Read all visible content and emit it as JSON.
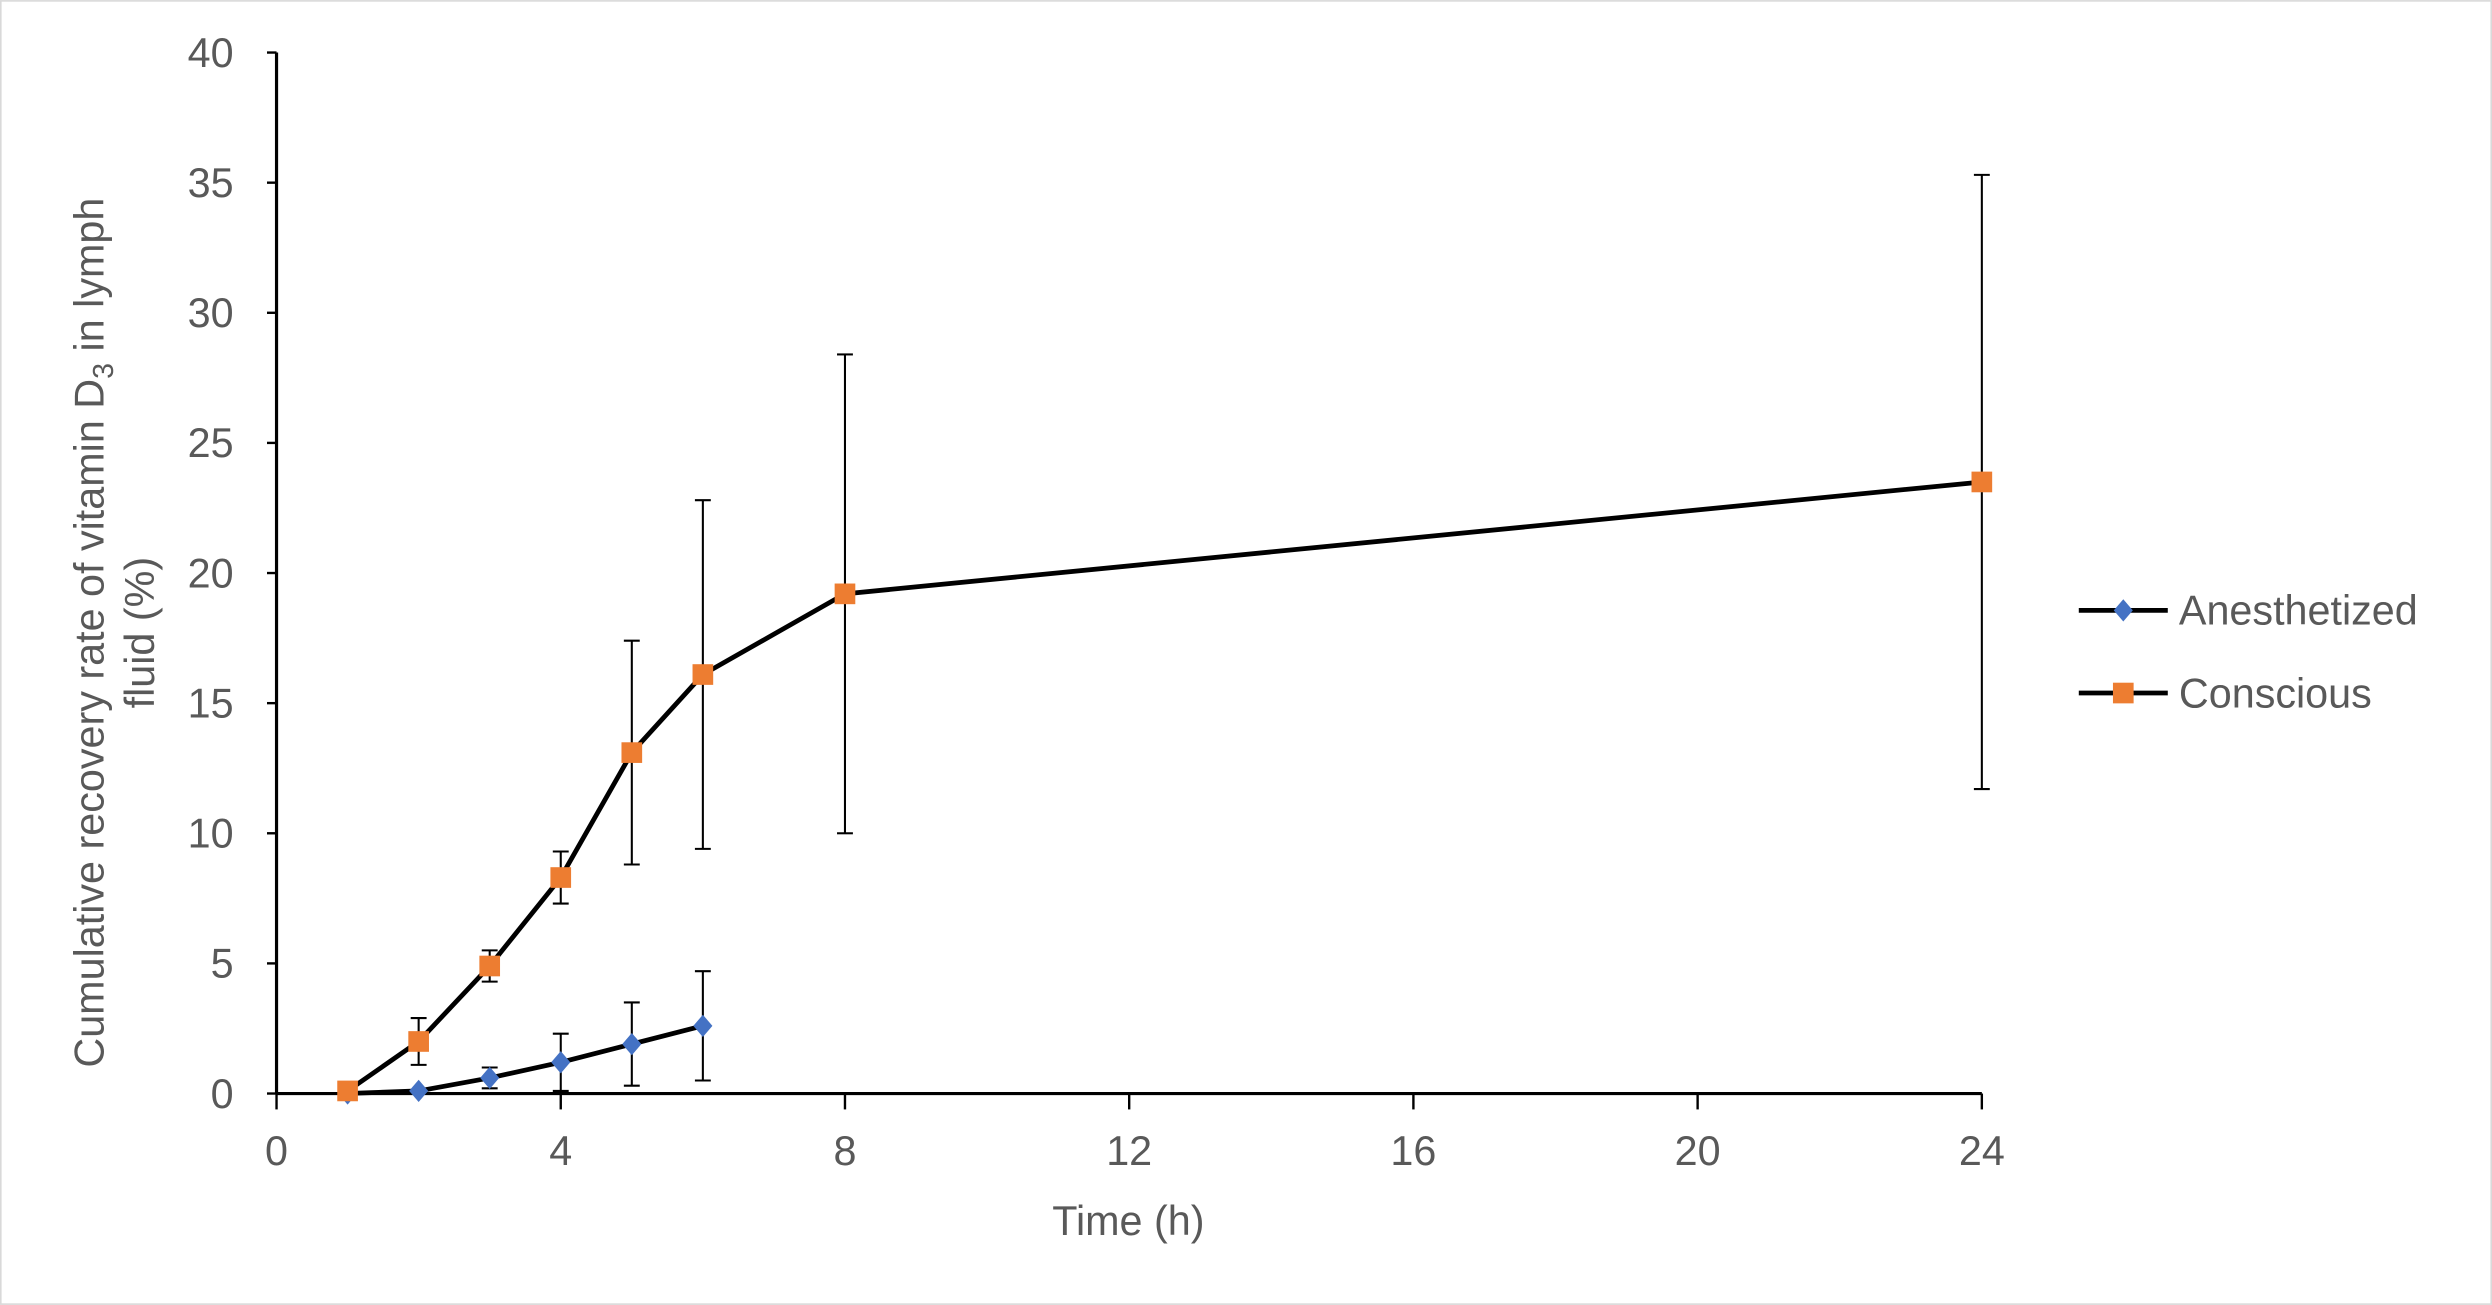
{
  "chart_data": {
    "type": "line",
    "title": "",
    "xlabel": "Time (h)",
    "ylabel_parts": {
      "main": "Cumulative recovery rate of vitamin D",
      "sub": "3",
      "rest": " in lymph",
      "line2": "fluid (%)"
    },
    "xlim": [
      0,
      24
    ],
    "ylim": [
      0,
      40
    ],
    "xticks": [
      0,
      4,
      8,
      12,
      16,
      20,
      24
    ],
    "yticks": [
      0,
      5,
      10,
      15,
      20,
      25,
      30,
      35,
      40
    ],
    "grid": false,
    "legend_position": "right",
    "series": [
      {
        "name": "Anesthetized",
        "color": "#4472C4",
        "marker": "diamond",
        "x": [
          1,
          2,
          3,
          4,
          5,
          6
        ],
        "y": [
          0.0,
          0.1,
          0.6,
          1.2,
          1.9,
          2.6
        ],
        "error": [
          0.0,
          0.0,
          0.4,
          1.1,
          1.6,
          2.1
        ]
      },
      {
        "name": "Conscious",
        "color": "#ED7D31",
        "marker": "square",
        "x": [
          1,
          2,
          3,
          4,
          5,
          6,
          8,
          24
        ],
        "y": [
          0.1,
          2.0,
          4.9,
          8.3,
          13.1,
          16.1,
          19.2,
          23.5
        ],
        "error": [
          0.0,
          0.9,
          0.6,
          1.0,
          4.3,
          6.7,
          9.2,
          11.8
        ]
      }
    ]
  }
}
